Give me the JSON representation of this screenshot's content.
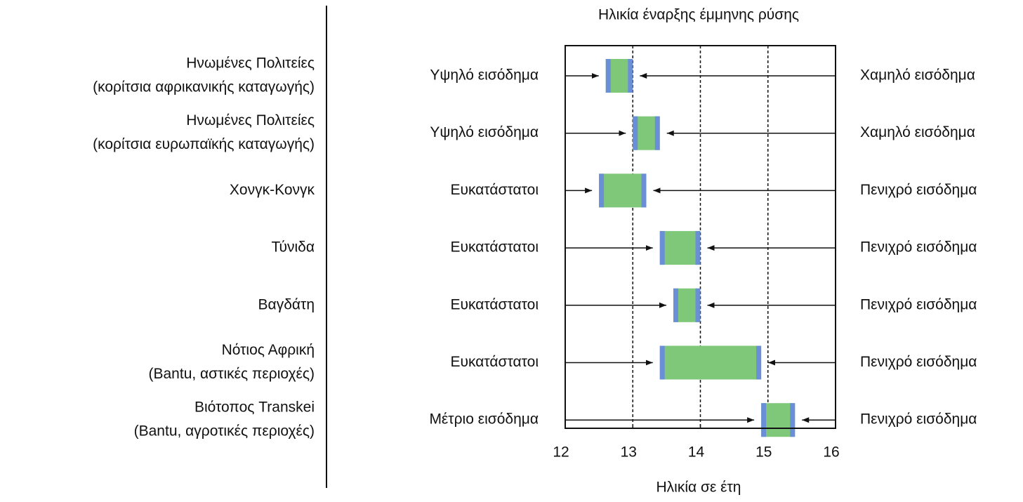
{
  "chart_data": {
    "type": "range_bar",
    "title": "Ηλικία έναρξης έμμηνης ρύσης",
    "xlabel": "Ηλικία σε έτη",
    "categories": [
      [
        "Ηνωμένες Πολιτείες",
        "(κορίτσια αφρικανικής καταγωγής)"
      ],
      [
        "Ηνωμένες Πολιτείες",
        "(κορίτσια ευρωπαϊκής καταγωγής)"
      ],
      [
        "Χονγκ-Κονγκ"
      ],
      [
        "Τύνιδα"
      ],
      [
        "Βαγδάτη"
      ],
      [
        "Νότιος Αφρική",
        "(Bantu, αστικές περιοχές)"
      ],
      [
        "Βιότοπος Transkei",
        "(Bantu, αγροτικές περιοχές)"
      ]
    ],
    "left_labels": [
      "Υψηλό εισόδημα",
      "Υψηλό εισόδημα",
      "Ευκατάστατοι",
      "Ευκατάστατοι",
      "Ευκατάστατοι",
      "Ευκατάστατοι",
      "Μέτριο εισόδημα"
    ],
    "right_labels": [
      "Χαμηλό εισόδημα",
      "Χαμηλό εισόδημα",
      "Πενιχρό εισόδημα",
      "Πενιχρό εισόδημα",
      "Πενιχρό εισόδημα",
      "Πενιχρό εισόδημα",
      "Πενιχρό εισόδημα"
    ],
    "starts": [
      12.6,
      13.0,
      12.5,
      13.4,
      13.6,
      13.4,
      14.9
    ],
    "ends": [
      13.0,
      13.4,
      13.2,
      14.0,
      14.0,
      14.9,
      15.4
    ],
    "xlim": [
      12,
      16
    ],
    "xticks": [
      12,
      13,
      14,
      15,
      16
    ],
    "grid": true,
    "color": "#7fc87a",
    "edge_color": "#6b8fd6"
  }
}
